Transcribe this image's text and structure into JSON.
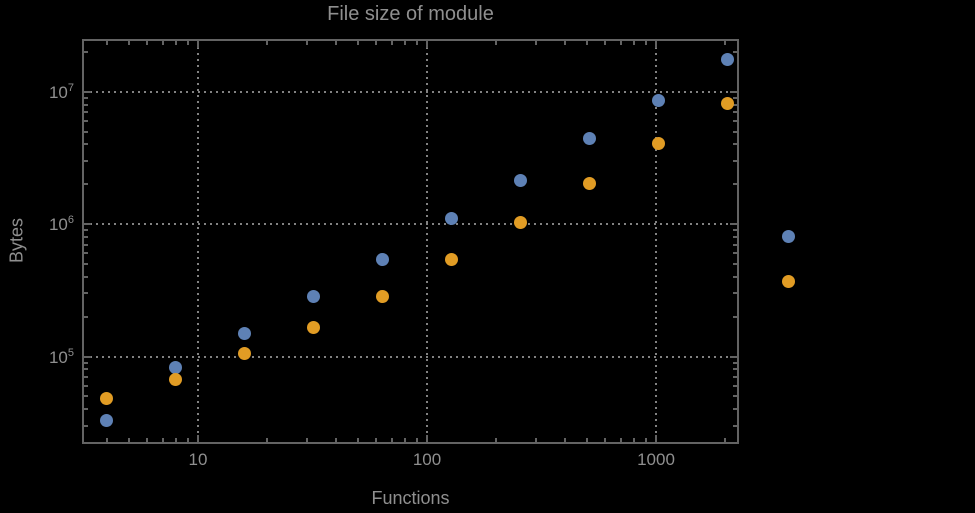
{
  "chart_data": {
    "type": "scatter",
    "title": "File size of module",
    "xlabel": "Functions",
    "ylabel": "Bytes",
    "xscale": "log",
    "yscale": "log",
    "xlim": [
      3.1,
      2300
    ],
    "ylim": [
      21000,
      25000000
    ],
    "grid": "dotted gridlines at major ticks only",
    "legend_position": "none",
    "plot_range_clipping": false,
    "background": "#000000",
    "x_ticks": [
      {
        "label": "10",
        "value": 10
      },
      {
        "label": "100",
        "value": 100
      },
      {
        "label": "1000",
        "value": 1000
      }
    ],
    "y_ticks": [
      {
        "mantissa": "10",
        "exponent": "5",
        "value": 100000
      },
      {
        "mantissa": "10",
        "exponent": "6",
        "value": 1000000
      },
      {
        "mantissa": "10",
        "exponent": "7",
        "value": 10000000
      }
    ],
    "series": [
      {
        "name": "series-1-blue",
        "color": "#5E81B5",
        "points": [
          [
            4,
            33000
          ],
          [
            8,
            82000
          ],
          [
            16,
            148000
          ],
          [
            32,
            285000
          ],
          [
            64,
            545000
          ],
          [
            128,
            1110000
          ],
          [
            256,
            2150000
          ],
          [
            512,
            4400000
          ],
          [
            1024,
            8650000
          ],
          [
            2048,
            17400000
          ],
          [
            3800,
            813000
          ]
        ]
      },
      {
        "name": "series-2-orange",
        "color": "#E19C24",
        "points": [
          [
            4,
            48000
          ],
          [
            8,
            67000
          ],
          [
            16,
            105000
          ],
          [
            32,
            165000
          ],
          [
            64,
            285000
          ],
          [
            128,
            540000
          ],
          [
            256,
            1030000
          ],
          [
            512,
            2040000
          ],
          [
            1024,
            4030000
          ],
          [
            2048,
            8200000
          ],
          [
            3800,
            366000
          ]
        ]
      }
    ]
  },
  "colors": {
    "background": "#000000",
    "frame": "#636363",
    "grid": "#828282",
    "text": "#8f8f8f",
    "series_blue": "#5E81B5",
    "series_orange": "#E19C24"
  }
}
